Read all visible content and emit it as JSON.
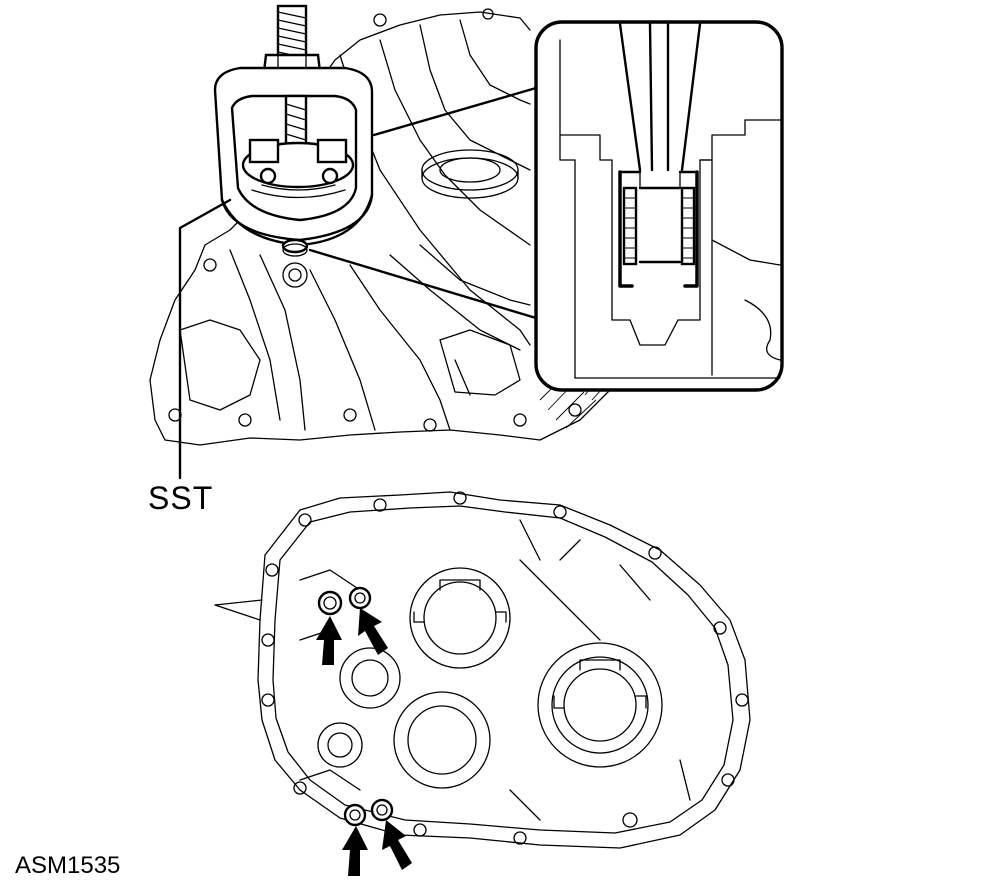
{
  "figure": {
    "callout_label": "SST",
    "figure_id": "ASM1535"
  },
  "marks": {
    "arrow_count": 4,
    "arrow_icon": "bold-black-arrow-icon"
  },
  "colors": {
    "line": "#000000",
    "background": "#ffffff"
  }
}
